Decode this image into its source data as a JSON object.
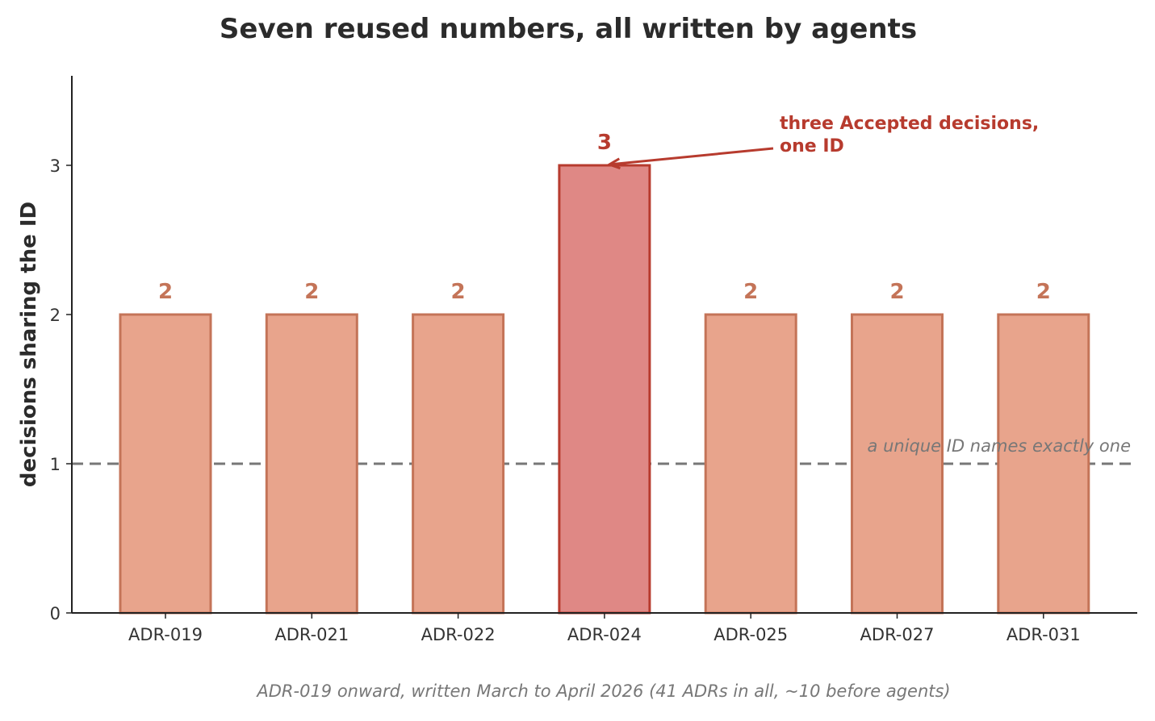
{
  "caption": "ADR-019 onward, written March to April 2026 (41 ADRs in all, ~10 before agents)",
  "chart_data": {
    "type": "bar",
    "title": "Seven reused numbers, all written by agents",
    "xlabel": "",
    "ylabel": "decisions sharing the ID",
    "categories": [
      "ADR-019",
      "ADR-021",
      "ADR-022",
      "ADR-024",
      "ADR-025",
      "ADR-027",
      "ADR-031"
    ],
    "values": [
      2,
      2,
      2,
      3,
      2,
      2,
      2
    ],
    "value_labels": [
      "2",
      "2",
      "2",
      "3",
      "2",
      "2",
      "2"
    ],
    "ylim": [
      0,
      3.6
    ],
    "yticks": [
      0,
      1,
      2,
      3
    ],
    "ytick_labels": [
      "0",
      "1",
      "2",
      "3"
    ],
    "highlight_category": "ADR-024",
    "reference_line": {
      "value": 1,
      "label": "a unique ID names exactly one",
      "style": "dashed"
    },
    "annotation": {
      "target_category": "ADR-024",
      "lines": [
        "three Accepted decisions,",
        "one ID"
      ]
    },
    "grid": false,
    "colors": {
      "bar_fill": "#e8a48c",
      "bar_edge": "#c47458",
      "highlight_fill": "#df8885",
      "highlight_edge": "#b73b2e",
      "label_color": "#c47458",
      "highlight_label_color": "#b73b2e",
      "reference_line": "#777777"
    }
  }
}
